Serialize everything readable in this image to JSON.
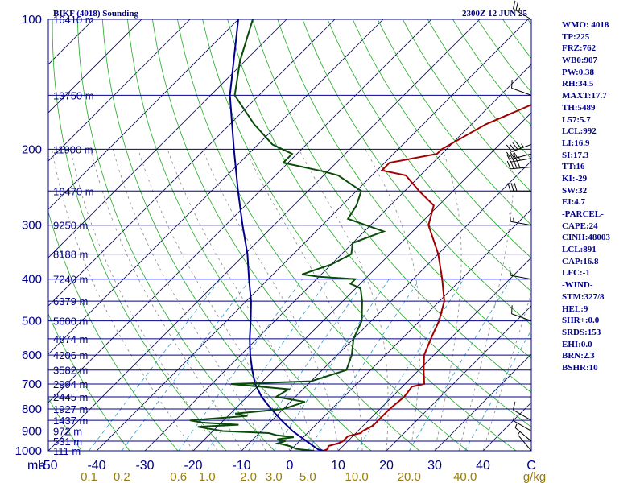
{
  "header": {
    "left": "BIKF (4018) Sounding",
    "right": "2300Z 12 JUN 25"
  },
  "indices": [
    "WMO: 4018",
    "TP:225",
    "FRZ:762",
    "WB0:907",
    "PW:0.38",
    "RH:34.5",
    "MAXT:17.7",
    "TH:5489",
    "L57:5.7",
    "LCL:992",
    "LI:16.9",
    "SI:17.3",
    "TT:16",
    "KI:-29",
    "SW:32",
    "EI:4.7",
    "-PARCEL-",
    "CAPE:24",
    "CINH:48003",
    "LCL:891",
    "CAP:16.8",
    "LFC:-1",
    "-WIND-",
    "STM:327/8",
    "HEL:9",
    "SHR+:0.0",
    "SRDS:153",
    "EHI:0.0",
    "BRN:2.3",
    "BSHR:10"
  ],
  "colors": {
    "temperature": "#a00000",
    "dewpoint": "#0a4a0a",
    "parcel": "#00008b",
    "isobars": "#00008b",
    "dry_adiabats": "#22aa22",
    "mixing_ratio": "#3399cc",
    "moist_adiabats": "#888888",
    "isotherms": "#00008b",
    "labels": "#00008b",
    "mixing_labels": "#9a7d0a"
  },
  "chart_data": {
    "type": "skew-t log-p sounding",
    "y_axis": {
      "label": "mb",
      "scale": "log",
      "ylim": [
        1000,
        100
      ],
      "ticks": [
        "100",
        "200",
        "300",
        "400",
        "500",
        "600",
        "700",
        "800",
        "900",
        "1000"
      ]
    },
    "x_axis": {
      "label": "C",
      "xlim": [
        -50,
        50
      ],
      "ticks": [
        "-50",
        "-40",
        "-30",
        "-20",
        "-10",
        "0",
        "10",
        "20",
        "30",
        "40"
      ]
    },
    "mixing_ratio_axis": {
      "label": "g/kg",
      "ticks": [
        "0.1",
        "0.2",
        "0.6",
        "1.0",
        "2.0",
        "3.0",
        "5.0",
        "10.0",
        "20.0",
        "40.0"
      ],
      "values": [
        0.1,
        0.2,
        0.6,
        1.0,
        2.0,
        3.0,
        5.0,
        10.0,
        20.0,
        40.0
      ]
    },
    "height_labels": [
      {
        "p": 100,
        "text": "16410 m"
      },
      {
        "p": 150,
        "text": "13750 m"
      },
      {
        "p": 200,
        "text": "11900 m"
      },
      {
        "p": 250,
        "text": "10470 m"
      },
      {
        "p": 300,
        "text": "9250 m"
      },
      {
        "p": 350,
        "text": "8188 m"
      },
      {
        "p": 400,
        "text": "7240 m"
      },
      {
        "p": 450,
        "text": "6379 m"
      },
      {
        "p": 500,
        "text": "5600 m"
      },
      {
        "p": 550,
        "text": "4874 m"
      },
      {
        "p": 600,
        "text": "4206 m"
      },
      {
        "p": 650,
        "text": "3582 m"
      },
      {
        "p": 700,
        "text": "2994 m"
      },
      {
        "p": 750,
        "text": "2445 m"
      },
      {
        "p": 800,
        "text": "1927 m"
      },
      {
        "p": 850,
        "text": "1437 m"
      },
      {
        "p": 900,
        "text": "972 m"
      },
      {
        "p": 950,
        "text": "531 m"
      },
      {
        "p": 1000,
        "text": "111 m"
      }
    ],
    "temperature": [
      {
        "p": 1000,
        "t": 7.0
      },
      {
        "p": 990,
        "t": 7.5
      },
      {
        "p": 975,
        "t": 7.0
      },
      {
        "p": 960,
        "t": 8.5
      },
      {
        "p": 950,
        "t": 9.0
      },
      {
        "p": 925,
        "t": 9.0
      },
      {
        "p": 910,
        "t": 11.0
      },
      {
        "p": 900,
        "t": 11.0
      },
      {
        "p": 875,
        "t": 12.0
      },
      {
        "p": 850,
        "t": 12.0
      },
      {
        "p": 800,
        "t": 12.0
      },
      {
        "p": 750,
        "t": 12.5
      },
      {
        "p": 710,
        "t": 12.0
      },
      {
        "p": 700,
        "t": 14.0
      },
      {
        "p": 650,
        "t": 11.0
      },
      {
        "p": 600,
        "t": 8.0
      },
      {
        "p": 550,
        "t": 6.0
      },
      {
        "p": 500,
        "t": 4.0
      },
      {
        "p": 450,
        "t": 1.0
      },
      {
        "p": 400,
        "t": -4.0
      },
      {
        "p": 350,
        "t": -10.0
      },
      {
        "p": 300,
        "t": -18.0
      },
      {
        "p": 270,
        "t": -21.0
      },
      {
        "p": 250,
        "t": -27.0
      },
      {
        "p": 230,
        "t": -33.0
      },
      {
        "p": 224,
        "t": -39.0
      },
      {
        "p": 215,
        "t": -39.0
      },
      {
        "p": 205,
        "t": -31.0
      },
      {
        "p": 200,
        "t": -31.0
      },
      {
        "p": 175,
        "t": -27.0
      },
      {
        "p": 150,
        "t": -19.0
      },
      {
        "p": 125,
        "t": -9.0
      },
      {
        "p": 100,
        "t": 7.0
      }
    ],
    "dewpoint": [
      {
        "p": 1000,
        "t": 5.0
      },
      {
        "p": 990,
        "t": 1.0
      },
      {
        "p": 975,
        "t": -1.0
      },
      {
        "p": 960,
        "t": -4.0
      },
      {
        "p": 950,
        "t": -3.0
      },
      {
        "p": 940,
        "t": -5.0
      },
      {
        "p": 930,
        "t": -2.0
      },
      {
        "p": 920,
        "t": -6.0
      },
      {
        "p": 910,
        "t": -8.0
      },
      {
        "p": 900,
        "t": -18.0
      },
      {
        "p": 880,
        "t": -24.0
      },
      {
        "p": 870,
        "t": -16.0
      },
      {
        "p": 860,
        "t": -24.0
      },
      {
        "p": 850,
        "t": -27.0
      },
      {
        "p": 830,
        "t": -16.0
      },
      {
        "p": 820,
        "t": -19.0
      },
      {
        "p": 800,
        "t": -10.0
      },
      {
        "p": 770,
        "t": -7.0
      },
      {
        "p": 750,
        "t": -14.0
      },
      {
        "p": 720,
        "t": -13.0
      },
      {
        "p": 700,
        "t": -26.0
      },
      {
        "p": 690,
        "t": -10.0
      },
      {
        "p": 650,
        "t": -5.0
      },
      {
        "p": 600,
        "t": -7.0
      },
      {
        "p": 550,
        "t": -10.0
      },
      {
        "p": 500,
        "t": -12.0
      },
      {
        "p": 450,
        "t": -16.0
      },
      {
        "p": 420,
        "t": -19.0
      },
      {
        "p": 410,
        "t": -22.0
      },
      {
        "p": 400,
        "t": -22.0
      },
      {
        "p": 395,
        "t": -30.0
      },
      {
        "p": 390,
        "t": -34.0
      },
      {
        "p": 370,
        "t": -30.0
      },
      {
        "p": 350,
        "t": -28.0
      },
      {
        "p": 330,
        "t": -30.0
      },
      {
        "p": 310,
        "t": -26.0
      },
      {
        "p": 290,
        "t": -36.0
      },
      {
        "p": 270,
        "t": -37.0
      },
      {
        "p": 250,
        "t": -39.0
      },
      {
        "p": 230,
        "t": -47.0
      },
      {
        "p": 225,
        "t": -51.0
      },
      {
        "p": 215,
        "t": -61.0
      },
      {
        "p": 205,
        "t": -61.0
      },
      {
        "p": 195,
        "t": -67.0
      },
      {
        "p": 175,
        "t": -75.0
      },
      {
        "p": 150,
        "t": -85.0
      },
      {
        "p": 125,
        "t": -91.0
      },
      {
        "p": 100,
        "t": -97.0
      }
    ],
    "parcel_path": [
      {
        "p": 1000,
        "t": 7.0
      },
      {
        "p": 992,
        "t": 5.5
      },
      {
        "p": 950,
        "t": 1.5
      },
      {
        "p": 900,
        "t": -3.5
      },
      {
        "p": 850,
        "t": -8.0
      },
      {
        "p": 800,
        "t": -12.5
      },
      {
        "p": 750,
        "t": -17.0
      },
      {
        "p": 700,
        "t": -21.0
      },
      {
        "p": 650,
        "t": -24.5
      },
      {
        "p": 600,
        "t": -28.0
      },
      {
        "p": 550,
        "t": -31.5
      },
      {
        "p": 500,
        "t": -35.0
      },
      {
        "p": 450,
        "t": -39.0
      },
      {
        "p": 400,
        "t": -44.0
      },
      {
        "p": 350,
        "t": -49.5
      },
      {
        "p": 300,
        "t": -56.5
      },
      {
        "p": 250,
        "t": -64.5
      },
      {
        "p": 200,
        "t": -74.0
      },
      {
        "p": 150,
        "t": -86.0
      },
      {
        "p": 100,
        "t": -100.0
      }
    ],
    "wind_barbs": [
      {
        "p": 100,
        "dir": 300,
        "spd": 25
      },
      {
        "p": 150,
        "dir": 290,
        "spd": 10
      },
      {
        "p": 195,
        "dir": 250,
        "spd": 45
      },
      {
        "p": 205,
        "dir": 255,
        "spd": 30
      },
      {
        "p": 210,
        "dir": 260,
        "spd": 35
      },
      {
        "p": 220,
        "dir": 265,
        "spd": 40
      },
      {
        "p": 250,
        "dir": 270,
        "spd": 30
      },
      {
        "p": 300,
        "dir": 280,
        "spd": 15
      },
      {
        "p": 400,
        "dir": 280,
        "spd": 10
      },
      {
        "p": 500,
        "dir": 290,
        "spd": 10
      },
      {
        "p": 850,
        "dir": 300,
        "spd": 10
      },
      {
        "p": 900,
        "dir": 300,
        "spd": 5
      },
      {
        "p": 950,
        "dir": 310,
        "spd": 5
      },
      {
        "p": 1000,
        "dir": 320,
        "spd": 5
      }
    ]
  }
}
